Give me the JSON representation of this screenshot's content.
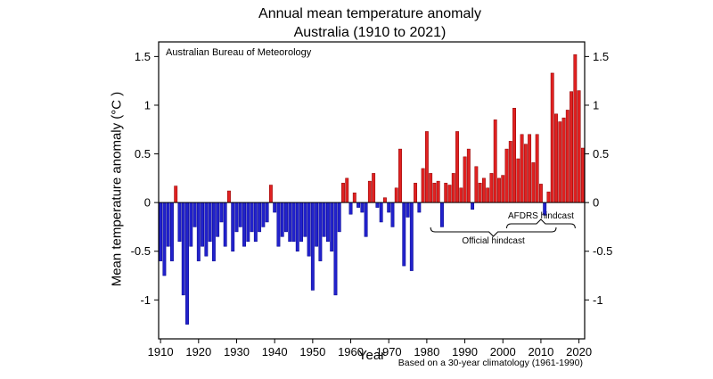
{
  "title": {
    "line1": "Annual mean temperature anomaly",
    "line2": "Australia (1910 to 2021)"
  },
  "watermark": "Australian Bureau of Meteorology",
  "footnote": "Based on a 30-year climatology (1961-1990)",
  "axes": {
    "x_label": "Year",
    "y_label": "Mean temperature anomaly (°C )"
  },
  "chart_data": {
    "type": "bar",
    "title": "Annual mean temperature anomaly Australia (1910 to 2021)",
    "source": "Australian Bureau of Meteorology",
    "baseline_note": "Based on a 30-year climatology (1961-1990)",
    "xlabel": "Year",
    "ylabel": "Mean temperature anomaly (°C)",
    "year_start": 1910,
    "year_end": 2021,
    "values": [
      -0.6,
      -0.75,
      -0.45,
      -0.6,
      0.17,
      -0.4,
      -0.95,
      -1.25,
      -0.45,
      -0.25,
      -0.6,
      -0.45,
      -0.55,
      -0.4,
      -0.6,
      -0.35,
      -0.2,
      -0.45,
      0.12,
      -0.5,
      -0.3,
      -0.25,
      -0.45,
      -0.4,
      -0.3,
      -0.4,
      -0.3,
      -0.25,
      -0.2,
      0.18,
      -0.1,
      -0.45,
      -0.35,
      -0.3,
      -0.4,
      -0.4,
      -0.5,
      -0.4,
      -0.35,
      -0.55,
      -0.9,
      -0.45,
      -0.6,
      -0.35,
      -0.4,
      -0.5,
      -0.95,
      -0.3,
      0.2,
      0.25,
      -0.12,
      0.1,
      -0.05,
      -0.1,
      -0.35,
      0.22,
      0.3,
      -0.05,
      -0.2,
      0.05,
      -0.1,
      -0.25,
      0.15,
      0.55,
      -0.65,
      -0.15,
      -0.7,
      0.2,
      -0.1,
      0.35,
      0.73,
      0.3,
      0.2,
      0.22,
      -0.25,
      0.2,
      0.18,
      0.3,
      0.73,
      0.15,
      0.47,
      0.55,
      -0.07,
      0.37,
      0.2,
      0.25,
      0.15,
      0.3,
      0.85,
      0.25,
      0.28,
      0.55,
      0.63,
      0.97,
      0.45,
      0.7,
      0.6,
      0.7,
      0.41,
      0.7,
      0.19,
      -0.13,
      0.11,
      1.33,
      0.91,
      0.83,
      0.87,
      0.95,
      1.14,
      1.52,
      1.15,
      0.56
    ],
    "ylim": [
      -1.4,
      1.65
    ],
    "yticks": [
      1.5,
      1,
      0.5,
      0,
      -0.5,
      -1
    ],
    "ytick_labels": [
      "1.5",
      "1",
      "0.5",
      "0",
      "-0.5",
      "-1"
    ],
    "xticks": [
      1910,
      1920,
      1930,
      1940,
      1950,
      1960,
      1970,
      1980,
      1990,
      2000,
      2010,
      2020
    ],
    "grid": false,
    "legend": "none",
    "positive_color": "#e02121",
    "negative_color": "#2222cc",
    "positive_edge_color": "#8b0000",
    "negative_edge_color": "#00008b",
    "annotations": [
      {
        "id": "official-hindcast",
        "label": "Official hindcast",
        "from_year": 1981,
        "to_year": 2014,
        "label_position": "below"
      },
      {
        "id": "afdrs-hindcast",
        "label": "AFDRS hindcast",
        "from_year": 2001,
        "to_year": 2019,
        "label_position": "above"
      }
    ]
  }
}
